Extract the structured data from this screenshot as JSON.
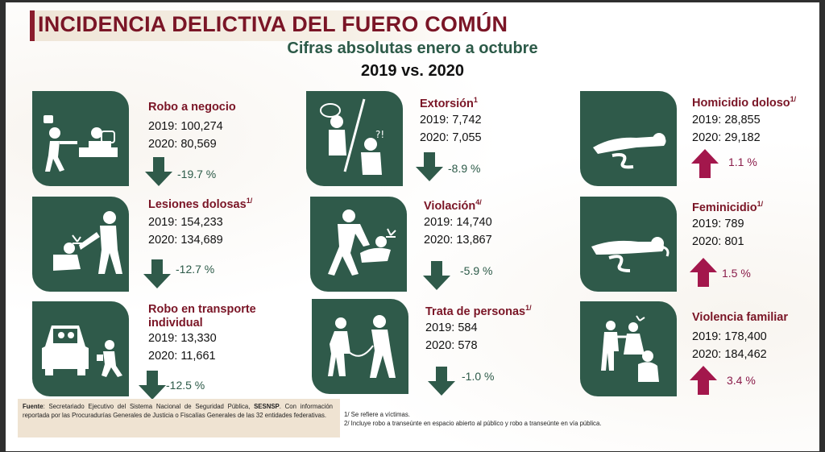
{
  "header": {
    "title": "INCIDENCIA DELICTIVA DEL FUERO COMÚN",
    "subtitle": "Cifras absolutas enero a octubre",
    "comparison": "2019 vs. 2020"
  },
  "colors": {
    "accent": "#7a1526",
    "green": "#2f5a4a",
    "up": "#a3174c",
    "down": "#2f5a4a"
  },
  "crimes": [
    {
      "label": "Robo a negocio",
      "note": "",
      "y2019": "2019: 100,274",
      "y2020": "2020: 80,569",
      "change": "-19.7 %",
      "trend": "down",
      "icon": "robbery-icon"
    },
    {
      "label": "Extorsión",
      "note": "1",
      "y2019": "2019: 7,742",
      "y2020": "2020: 7,055",
      "change": "-8.9 %",
      "trend": "down",
      "icon": "extortion-icon"
    },
    {
      "label": "Homicidio doloso",
      "note": "1/",
      "y2019": "2019: 28,855",
      "y2020": "2020: 29,182",
      "change": "1.1 %",
      "trend": "up",
      "icon": "homicide-icon"
    },
    {
      "label": "Lesiones dolosas",
      "note": "1/",
      "y2019": "2019: 154,233",
      "y2020": "2020: 134,689",
      "change": "-12.7 %",
      "trend": "down",
      "icon": "assault-icon"
    },
    {
      "label": "Violación",
      "note": "4/",
      "y2019": "2019: 14,740",
      "y2020": "2020: 13,867",
      "change": "-5.9 %",
      "trend": "down",
      "icon": "rape-icon"
    },
    {
      "label": "Feminicidio",
      "note": "1/",
      "y2019": "2019: 789",
      "y2020": "2020: 801",
      "change": "1.5 %",
      "trend": "up",
      "icon": "femicide-icon"
    },
    {
      "label": "Robo en transporte",
      "label2": "individual",
      "note": "",
      "y2019": "2019: 13,330",
      "y2020": "2020: 11,661",
      "change": "-12.5 %",
      "trend": "down",
      "icon": "car-robbery-icon"
    },
    {
      "label": "Trata de personas",
      "note": "1/",
      "y2019": "2019: 584",
      "y2020": "2020: 578",
      "change": "-1.0 %",
      "trend": "down",
      "icon": "trafficking-icon"
    },
    {
      "label": "Violencia familiar",
      "note": "",
      "y2019": "2019: 178,400",
      "y2020": "2020: 184,462",
      "change": "3.4 %",
      "trend": "up",
      "icon": "family-violence-icon"
    }
  ],
  "footer": {
    "source_label": "Fuente",
    "source_text": ": Secretariado Ejecutivo del Sistema Nacional de Seguridad Pública, ",
    "source_bold": "SESNSP",
    "source_text2": ". Con información reportada por las Procuradurías Generales de Justicia o Fiscalías Generales de las 32 entidades federativas.",
    "note1": "1/ Se refiere a víctimas.",
    "note2": "2/ Incluye robo a transeúnte en espacio abierto al público y robo a transeúnte en vía pública."
  }
}
